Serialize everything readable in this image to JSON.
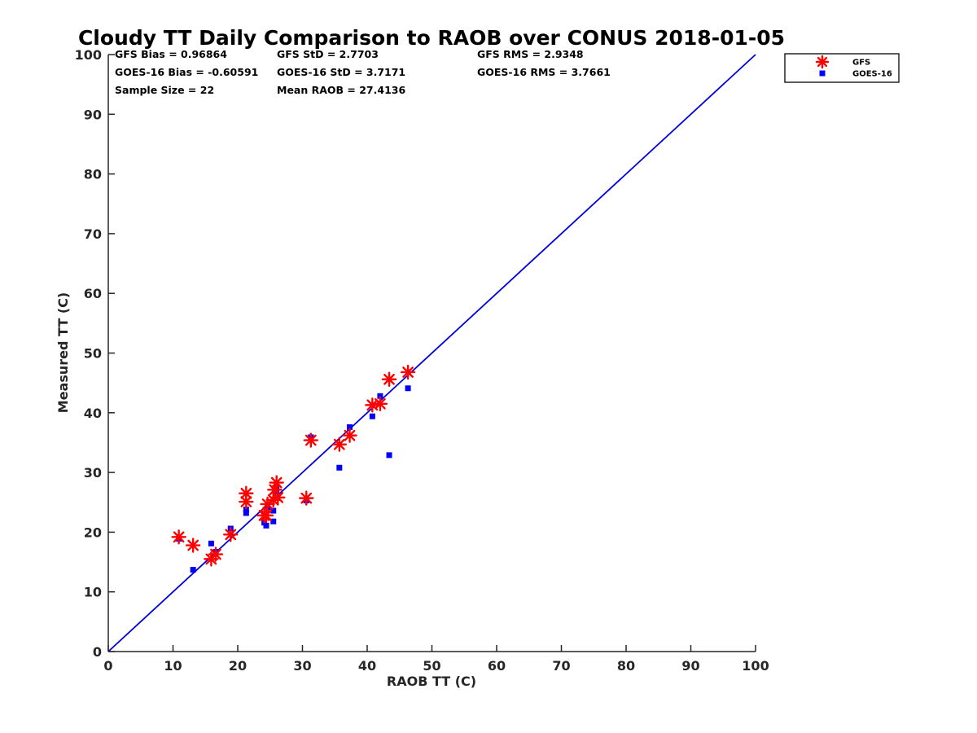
{
  "chart_data": {
    "type": "scatter",
    "title": "Cloudy TT Daily Comparison to RAOB over CONUS 2018-01-05",
    "xlabel": "RAOB TT (C)",
    "ylabel": "Measured TT (C)",
    "xlim": [
      0,
      100
    ],
    "ylim": [
      0,
      100
    ],
    "xticks": [
      "0",
      "10",
      "20",
      "30",
      "40",
      "50",
      "60",
      "70",
      "80",
      "90",
      "100"
    ],
    "yticks": [
      "0",
      "10",
      "20",
      "30",
      "40",
      "50",
      "60",
      "70",
      "80",
      "90",
      "100"
    ],
    "grid": false,
    "legend_position": "top-right",
    "stats": [
      [
        "GFS Bias = 0.96864",
        "GFS StD = 2.7703",
        "GFS RMS = 2.9348"
      ],
      [
        "GOES-16 Bias = -0.60591",
        "GOES-16 StD = 3.7171",
        "GOES-16 RMS = 3.7661"
      ],
      [
        "Sample Size = 22",
        "Mean RAOB = 27.4136",
        ""
      ]
    ],
    "reference_line": {
      "x": [
        0,
        100
      ],
      "y": [
        0,
        100
      ],
      "color": "#0000dd"
    },
    "series": [
      {
        "name": "GFS",
        "marker": "asterisk",
        "color": "#ff0000",
        "points": [
          [
            10.9,
            19.2
          ],
          [
            13.1,
            17.8
          ],
          [
            15.9,
            15.5
          ],
          [
            16.6,
            16.3
          ],
          [
            18.9,
            19.6
          ],
          [
            21.3,
            26.5
          ],
          [
            21.3,
            25.1
          ],
          [
            24.1,
            22.8
          ],
          [
            24.4,
            22.8
          ],
          [
            24.6,
            24.7
          ],
          [
            25.5,
            25.4
          ],
          [
            25.7,
            27.1
          ],
          [
            26.0,
            28.3
          ],
          [
            26.2,
            25.8
          ],
          [
            30.6,
            25.7
          ],
          [
            31.3,
            35.4
          ],
          [
            35.7,
            34.7
          ],
          [
            37.3,
            36.2
          ],
          [
            40.8,
            41.3
          ],
          [
            42.0,
            41.5
          ],
          [
            43.4,
            45.6
          ],
          [
            46.3,
            46.8
          ]
        ]
      },
      {
        "name": "GOES-16",
        "marker": "square",
        "color": "#0000ff",
        "points": [
          [
            10.9,
            18.9
          ],
          [
            13.1,
            13.7
          ],
          [
            15.9,
            18.1
          ],
          [
            16.6,
            16.7
          ],
          [
            18.9,
            20.6
          ],
          [
            21.3,
            23.8
          ],
          [
            21.3,
            23.2
          ],
          [
            24.1,
            21.6
          ],
          [
            24.4,
            21.1
          ],
          [
            24.6,
            24.2
          ],
          [
            25.5,
            23.6
          ],
          [
            25.5,
            21.8
          ],
          [
            26.0,
            27.6
          ],
          [
            26.0,
            26.8
          ],
          [
            30.6,
            25.3
          ],
          [
            31.3,
            35.9
          ],
          [
            35.7,
            30.8
          ],
          [
            37.3,
            37.6
          ],
          [
            40.8,
            39.4
          ],
          [
            42.0,
            42.8
          ],
          [
            43.4,
            32.9
          ],
          [
            46.3,
            44.1
          ]
        ]
      }
    ]
  }
}
